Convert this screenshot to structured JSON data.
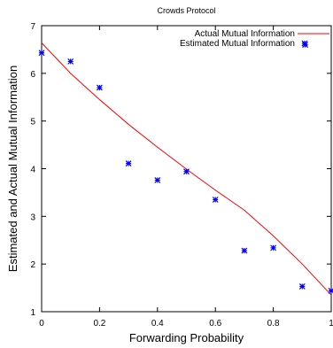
{
  "chart_data": {
    "type": "line",
    "title": "Crowds Protocol",
    "xlabel": "Forwarding Probability",
    "ylabel": "Estimated and Actual Mutual Information",
    "xlim": [
      0,
      1
    ],
    "ylim": [
      1,
      7
    ],
    "xticks": [
      0,
      0.2,
      0.4,
      0.6,
      0.8,
      1
    ],
    "xtick_labels": [
      "0",
      "0.2",
      "0.4",
      "0.6",
      "0.8",
      "1"
    ],
    "yticks": [
      1,
      2,
      3,
      4,
      5,
      6,
      7
    ],
    "ytick_labels": [
      "1",
      "2",
      "3",
      "4",
      "5",
      "6",
      "7"
    ],
    "legend_position": "top-right",
    "grid": false,
    "series": [
      {
        "name": "Actual Mutual Information",
        "kind": "line",
        "color": "#ff0000",
        "x": [
          0,
          0.1,
          0.2,
          0.3,
          0.4,
          0.5,
          0.6,
          0.7,
          0.8,
          0.9,
          1.0
        ],
        "y": [
          6.64,
          6.0,
          5.45,
          4.93,
          4.45,
          3.99,
          3.55,
          3.13,
          2.59,
          2.0,
          1.35
        ]
      },
      {
        "name": "Estimated Mutual Information",
        "kind": "scatter",
        "color": "#0000ff",
        "x": [
          0,
          0.1,
          0.2,
          0.3,
          0.4,
          0.5,
          0.6,
          0.7,
          0.8,
          0.9,
          0.91,
          1.0
        ],
        "y": [
          6.43,
          6.25,
          5.7,
          4.11,
          3.76,
          3.94,
          3.35,
          2.28,
          2.34,
          1.53,
          6.6,
          1.44
        ]
      }
    ]
  }
}
